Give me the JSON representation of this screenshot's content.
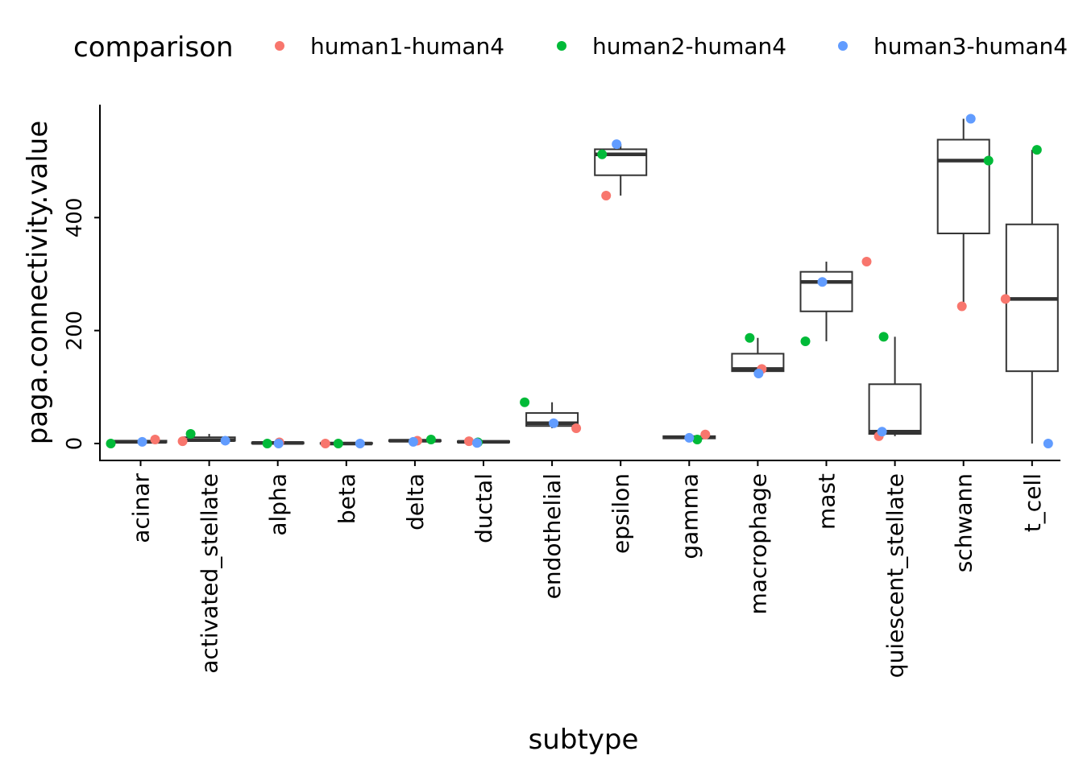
{
  "chart_data": {
    "type": "box",
    "xlabel": "subtype",
    "ylabel": "paga.connectivity.value",
    "ylim": [
      -30,
      600
    ],
    "yticks": [
      0,
      200,
      400
    ],
    "grid": false,
    "legend": {
      "title": "comparison",
      "position": "top-left",
      "entries": [
        {
          "name": "human1-human4",
          "color": "#F8766D"
        },
        {
          "name": "human2-human4",
          "color": "#00BA38"
        },
        {
          "name": "human3-human4",
          "color": "#619CFF"
        }
      ]
    },
    "categories": [
      "acinar",
      "activated_stellate",
      "alpha",
      "beta",
      "delta",
      "ductal",
      "endothelial",
      "epsilon",
      "gamma",
      "macrophage",
      "mast",
      "quiescent_stellate",
      "schwann",
      "t_cell"
    ],
    "boxes": [
      {
        "q1": 2,
        "median": 3,
        "q3": 5,
        "whisker_low": 0,
        "whisker_high": 7
      },
      {
        "q1": 5,
        "median": 6,
        "q3": 11,
        "whisker_low": 4,
        "whisker_high": 17
      },
      {
        "q1": 0,
        "median": 1,
        "q3": 2,
        "whisker_low": 0,
        "whisker_high": 3
      },
      {
        "q1": 0,
        "median": 0,
        "q3": 1,
        "whisker_low": 0,
        "whisker_high": 1
      },
      {
        "q1": 4,
        "median": 5,
        "q3": 6,
        "whisker_low": 3,
        "whisker_high": 7
      },
      {
        "q1": 2,
        "median": 3,
        "q3": 4,
        "whisker_low": 1,
        "whisker_high": 5
      },
      {
        "q1": 31,
        "median": 36,
        "q3": 54,
        "whisker_low": 27,
        "whisker_high": 73
      },
      {
        "q1": 475,
        "median": 512,
        "q3": 521,
        "whisker_low": 439,
        "whisker_high": 530
      },
      {
        "q1": 9,
        "median": 11,
        "q3": 13,
        "whisker_low": 7,
        "whisker_high": 16
      },
      {
        "q1": 128,
        "median": 132,
        "q3": 159,
        "whisker_low": 124,
        "whisker_high": 187
      },
      {
        "q1": 234,
        "median": 286,
        "q3": 304,
        "whisker_low": 181,
        "whisker_high": 322
      },
      {
        "q1": 17,
        "median": 21,
        "q3": 105,
        "whisker_low": 13,
        "whisker_high": 189
      },
      {
        "q1": 372,
        "median": 501,
        "q3": 538,
        "whisker_low": 243,
        "whisker_high": 575
      },
      {
        "q1": 128,
        "median": 256,
        "q3": 388,
        "whisker_low": 0,
        "whisker_high": 520
      }
    ],
    "series": [
      {
        "name": "human1-human4",
        "color": "#F8766D",
        "values": [
          7,
          4,
          2,
          0,
          5,
          4,
          27,
          439,
          16,
          132,
          322,
          13,
          243,
          256
        ]
      },
      {
        "name": "human2-human4",
        "color": "#00BA38",
        "values": [
          0,
          17,
          0,
          0,
          7,
          2,
          73,
          512,
          7,
          187,
          181,
          189,
          501,
          520
        ]
      },
      {
        "name": "human3-human4",
        "color": "#619CFF",
        "values": [
          3,
          5,
          0,
          0,
          3,
          1,
          36,
          530,
          10,
          124,
          286,
          21,
          575,
          0
        ]
      }
    ]
  }
}
